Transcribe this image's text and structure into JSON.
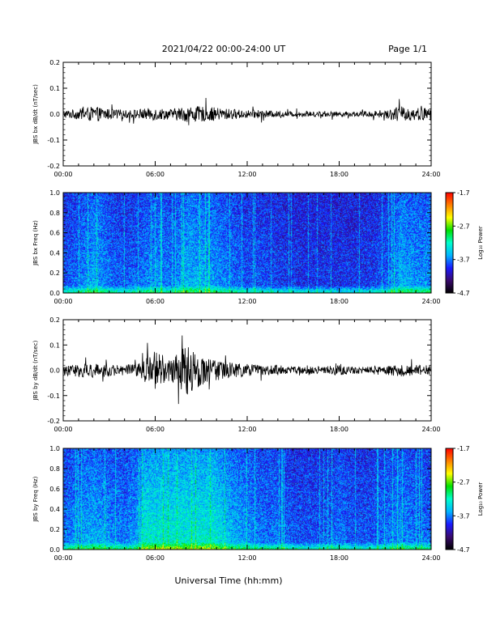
{
  "header": {
    "date_range": "2021/04/22  00:00-24:00 UT",
    "page": "Page 1/1"
  },
  "xaxis": {
    "label": "Universal Time (hh:mm)",
    "tick_labels": [
      "00:00",
      "06:00",
      "12:00",
      "18:00",
      "24:00"
    ]
  },
  "colors": {
    "trace": "#000000",
    "colormap": [
      "#000000",
      "#3a0a6e",
      "#1a1aff",
      "#00b4ff",
      "#00ffcc",
      "#00e000",
      "#ffff00",
      "#ff8000",
      "#ff0000"
    ]
  },
  "chart_data": [
    {
      "type": "line",
      "ylabel": "JBS bx dB/dt (nT/sec)",
      "xlim": [
        0,
        24
      ],
      "ylim": [
        -0.2,
        0.2
      ],
      "yticks": [
        "0.2",
        "0.1",
        "0.0",
        "-0.1",
        "-0.2"
      ],
      "grid": false,
      "series": [
        {
          "x": [
            0,
            1,
            2,
            3,
            4,
            5,
            6,
            7,
            8,
            9,
            10,
            11,
            12,
            13,
            14,
            15,
            16,
            17,
            18,
            19,
            20,
            21,
            22,
            23,
            24
          ],
          "amplitude": [
            0.015,
            0.02,
            0.03,
            0.02,
            0.015,
            0.02,
            0.025,
            0.02,
            0.03,
            0.03,
            0.025,
            0.02,
            0.015,
            0.015,
            0.012,
            0.01,
            0.01,
            0.01,
            0.01,
            0.01,
            0.012,
            0.015,
            0.03,
            0.025,
            0.025
          ]
        }
      ]
    },
    {
      "type": "heatmap",
      "ylabel": "JBS bx Freq (Hz)",
      "xlim": [
        0,
        24
      ],
      "ylim": [
        0.0,
        1.0
      ],
      "yticks": [
        "1.0",
        "0.8",
        "0.6",
        "0.4",
        "0.2",
        "0.0"
      ],
      "colorbar": {
        "label": "Log₁₀ Power",
        "range": [
          -4.7,
          -1.7
        ],
        "ticks": [
          "-1.7",
          "-2.7",
          "-3.7",
          "-4.7"
        ]
      }
    },
    {
      "type": "line",
      "ylabel": "JBS by dB/dt (nT/sec)",
      "xlim": [
        0,
        24
      ],
      "ylim": [
        -0.2,
        0.2
      ],
      "yticks": [
        "0.2",
        "0.1",
        "0.0",
        "-0.1",
        "-0.2"
      ],
      "grid": false,
      "series": [
        {
          "x": [
            0,
            1,
            2,
            3,
            4,
            5,
            6,
            7,
            8,
            9,
            10,
            11,
            12,
            13,
            14,
            15,
            16,
            17,
            18,
            19,
            20,
            21,
            22,
            23,
            24
          ],
          "amplitude": [
            0.02,
            0.025,
            0.03,
            0.025,
            0.02,
            0.03,
            0.08,
            0.04,
            0.1,
            0.06,
            0.04,
            0.03,
            0.025,
            0.02,
            0.02,
            0.015,
            0.015,
            0.015,
            0.02,
            0.015,
            0.015,
            0.02,
            0.025,
            0.02,
            0.02
          ]
        }
      ]
    },
    {
      "type": "heatmap",
      "ylabel": "JBS by Freq (Hz)",
      "xlim": [
        0,
        24
      ],
      "ylim": [
        0.0,
        1.0
      ],
      "yticks": [
        "1.0",
        "0.8",
        "0.6",
        "0.4",
        "0.2",
        "0.0"
      ],
      "colorbar": {
        "label": "Log₁₀ Power",
        "range": [
          -4.7,
          -1.7
        ],
        "ticks": [
          "-1.7",
          "-2.7",
          "-3.7",
          "-4.7"
        ]
      }
    }
  ]
}
